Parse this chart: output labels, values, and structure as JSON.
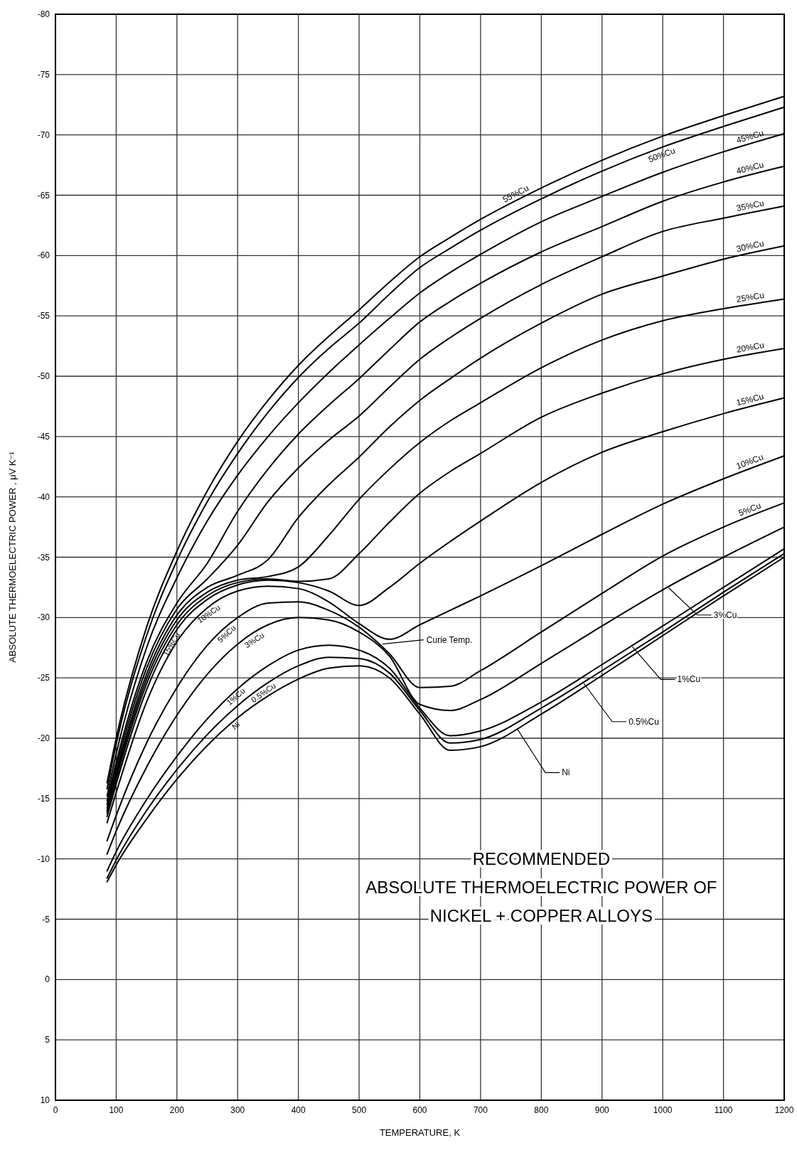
{
  "chart_data": {
    "type": "line",
    "title": "RECOMMENDED\nABSOLUTE THERMOELECTRIC POWER OF\nNICKEL + COPPER ALLOYS",
    "xlabel": "TEMPERATURE, K",
    "ylabel": "ABSOLUTE THERMOELECTRIC POWER , μV K⁻¹",
    "x": [
      85,
      100,
      150,
      200,
      250,
      300,
      350,
      400,
      450,
      500,
      550,
      600,
      650,
      700,
      800,
      900,
      1000,
      1100,
      1200
    ],
    "xlim": [
      0,
      1200
    ],
    "xticks": [
      0,
      100,
      200,
      300,
      400,
      500,
      600,
      700,
      800,
      900,
      1000,
      1100,
      1200
    ],
    "ylim": [
      10,
      -80
    ],
    "yticks": [
      -80,
      -75,
      -70,
      -65,
      -60,
      -55,
      -50,
      -45,
      -40,
      -35,
      -30,
      -25,
      -20,
      -15,
      -10,
      -5,
      0,
      5,
      10
    ],
    "grid": true,
    "line_style": "solid",
    "annotations": [
      {
        "text": "Curie Temp.",
        "x": 536,
        "y": -27.8
      }
    ],
    "series": [
      {
        "name": "Ni",
        "color": "#000000",
        "values": [
          -8.1,
          -9.5,
          -13.3,
          -16.6,
          -19.4,
          -21.7,
          -23.5,
          -24.9,
          -25.8,
          -26.0,
          -25.0,
          -22.0,
          -19.0,
          -19.3,
          -22.0,
          -25.2,
          -28.5,
          -31.8,
          -35.0
        ]
      },
      {
        "name": "0.5%Cu",
        "color": "#000000",
        "values": [
          -8.4,
          -9.9,
          -14.0,
          -17.4,
          -20.3,
          -22.7,
          -24.6,
          -26.0,
          -26.7,
          -26.6,
          -25.4,
          -22.3,
          -19.6,
          -19.9,
          -22.5,
          -25.6,
          -28.8,
          -32.1,
          -35.3
        ]
      },
      {
        "name": "1%Cu",
        "color": "#000000",
        "values": [
          -9.0,
          -10.6,
          -14.9,
          -18.5,
          -21.6,
          -24.1,
          -26.0,
          -27.3,
          -27.7,
          -27.3,
          -25.8,
          -22.5,
          -20.2,
          -20.6,
          -23.0,
          -26.1,
          -29.3,
          -32.5,
          -35.7
        ]
      },
      {
        "name": "3%Cu",
        "color": "#000000",
        "values": [
          -10.4,
          -12.3,
          -17.6,
          -21.9,
          -25.3,
          -27.8,
          -29.4,
          -30.0,
          -29.8,
          -28.8,
          -26.8,
          -22.8,
          -22.3,
          -23.2,
          -26.2,
          -29.3,
          -32.3,
          -35.0,
          -37.5
        ]
      },
      {
        "name": "5%Cu",
        "color": "#000000",
        "values": [
          -11.5,
          -13.6,
          -19.6,
          -24.2,
          -27.7,
          -30.0,
          -31.2,
          -31.3,
          -30.6,
          -29.2,
          -27.0,
          -24.2,
          -24.3,
          -25.6,
          -28.8,
          -32.0,
          -35.1,
          -37.5,
          -39.5
        ]
      },
      {
        "name": "10%Cu",
        "color": "#000000",
        "values": [
          -13.0,
          -15.5,
          -23.0,
          -28.0,
          -30.8,
          -32.2,
          -32.6,
          -32.4,
          -31.3,
          -29.5,
          -28.2,
          -29.4,
          -30.6,
          -31.8,
          -34.3,
          -36.9,
          -39.4,
          -41.5,
          -43.4
        ]
      },
      {
        "name": "15%Cu",
        "color": "#000000",
        "values": [
          -13.5,
          -16.2,
          -24.0,
          -29.0,
          -31.5,
          -32.7,
          -33.1,
          -32.9,
          -32.2,
          -31.0,
          -32.5,
          -34.5,
          -36.3,
          -38.0,
          -41.2,
          -43.7,
          -45.4,
          -46.9,
          -48.2
        ]
      },
      {
        "name": "20%Cu",
        "color": "#000000",
        "values": [
          -13.8,
          -16.6,
          -24.5,
          -29.4,
          -31.8,
          -32.9,
          -33.2,
          -33.0,
          -33.2,
          -35.3,
          -37.9,
          -40.3,
          -42.1,
          -43.6,
          -46.6,
          -48.6,
          -50.2,
          -51.4,
          -52.3
        ]
      },
      {
        "name": "25%Cu",
        "color": "#000000",
        "values": [
          -14.0,
          -16.9,
          -24.9,
          -29.8,
          -32.1,
          -33.1,
          -33.4,
          -34.2,
          -36.8,
          -39.8,
          -42.3,
          -44.5,
          -46.3,
          -47.8,
          -50.7,
          -53.0,
          -54.6,
          -55.6,
          -56.4
        ]
      },
      {
        "name": "30%Cu",
        "color": "#000000",
        "values": [
          -14.2,
          -17.2,
          -25.3,
          -30.2,
          -32.5,
          -33.5,
          -34.8,
          -38.3,
          -41.0,
          -43.3,
          -45.8,
          -48.0,
          -49.8,
          -51.5,
          -54.4,
          -56.8,
          -58.3,
          -59.7,
          -60.8
        ]
      },
      {
        "name": "35%Cu",
        "color": "#000000",
        "values": [
          -14.5,
          -17.6,
          -25.8,
          -30.7,
          -33.2,
          -36.0,
          -39.6,
          -42.4,
          -44.7,
          -46.7,
          -49.1,
          -51.4,
          -53.2,
          -54.8,
          -57.6,
          -59.9,
          -62.0,
          -63.1,
          -64.1
        ]
      },
      {
        "name": "40%Cu",
        "color": "#000000",
        "values": [
          -14.8,
          -18.0,
          -26.3,
          -31.2,
          -34.5,
          -38.8,
          -42.3,
          -45.2,
          -47.6,
          -49.8,
          -52.2,
          -54.5,
          -56.2,
          -57.7,
          -60.3,
          -62.4,
          -64.5,
          -66.1,
          -67.4
        ]
      },
      {
        "name": "45%Cu",
        "color": "#000000",
        "values": [
          -15.2,
          -18.7,
          -27.5,
          -33.3,
          -38.0,
          -41.8,
          -45.0,
          -47.8,
          -50.3,
          -52.6,
          -54.8,
          -56.9,
          -58.6,
          -60.1,
          -62.8,
          -64.9,
          -66.9,
          -68.6,
          -70.1
        ]
      },
      {
        "name": "50%Cu",
        "color": "#000000",
        "values": [
          -15.8,
          -19.5,
          -28.5,
          -34.7,
          -39.6,
          -43.6,
          -47.0,
          -49.9,
          -52.3,
          -54.4,
          -56.8,
          -59.0,
          -60.6,
          -62.1,
          -64.7,
          -67.0,
          -69.0,
          -70.7,
          -72.3
        ]
      },
      {
        "name": "55%Cu",
        "color": "#000000",
        "values": [
          -16.3,
          -20.0,
          -29.2,
          -35.5,
          -40.5,
          -44.6,
          -48.0,
          -50.9,
          -53.3,
          -55.5,
          -57.8,
          -59.9,
          -61.5,
          -63.0,
          -65.6,
          -67.9,
          -69.9,
          -71.6,
          -73.2
        ]
      }
    ]
  }
}
